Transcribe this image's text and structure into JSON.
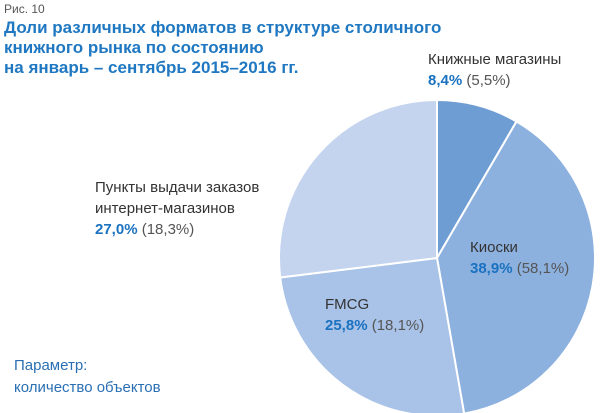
{
  "figure_number": "Рис. 10",
  "parameter": {
    "label": "Параметр:",
    "value": "количество объектов"
  },
  "chart_data": {
    "type": "pie",
    "title": [
      "Доли различных форматов в структуре столичного",
      "книжного рынка по состоянию",
      "на январь – сентябрь 2015–2016 гг."
    ],
    "categories": [
      "Книжные магазины",
      "Киоски",
      "FMCG",
      "Пункты выдачи заказов интернет-магазинов"
    ],
    "colors": [
      "#6e9dd4",
      "#8db1df",
      "#a9c2e7",
      "#c4d4ef"
    ],
    "series": [
      {
        "values": [
          8.4,
          38.9,
          25.8,
          27.0
        ],
        "value_labels": [
          "8,4%",
          "38,9%",
          "25,8%",
          "27,0%"
        ]
      },
      {
        "values": [
          5.5,
          58.1,
          18.1,
          18.3
        ],
        "value_labels": [
          "(5,5%)",
          "(58,1%)",
          "(18,1%)",
          "(18,3%)"
        ]
      }
    ]
  }
}
